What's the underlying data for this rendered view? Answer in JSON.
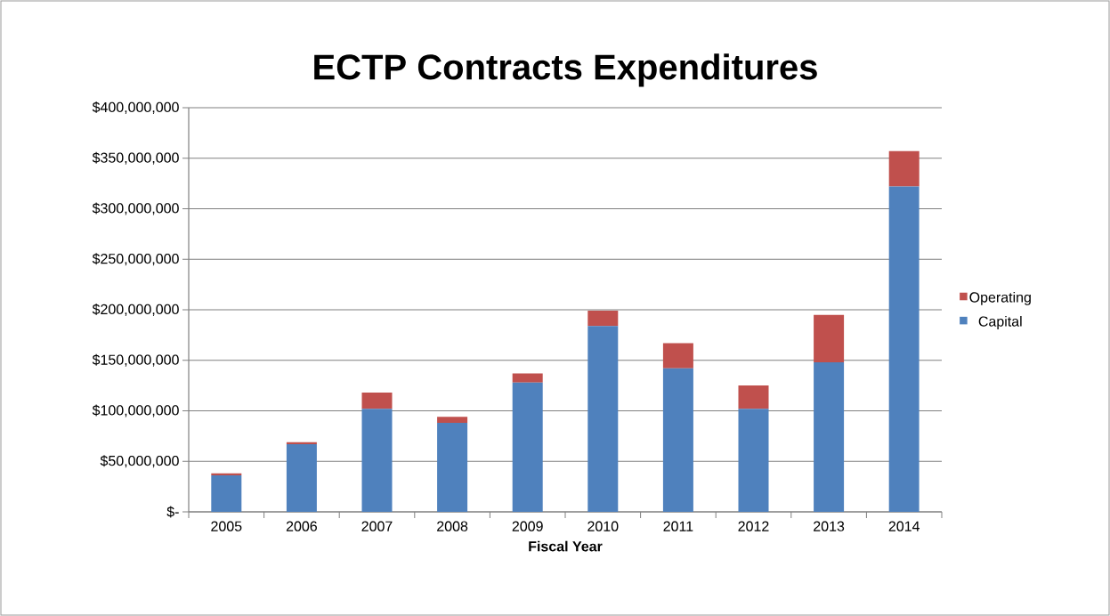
{
  "chart_data": {
    "type": "bar",
    "title": "ECTP Contracts Expenditures",
    "xlabel": "Fiscal Year",
    "categories": [
      "2005",
      "2006",
      "2007",
      "2008",
      "2009",
      "2010",
      "2011",
      "2012",
      "2013",
      "2014"
    ],
    "series": [
      {
        "name": "Capital",
        "color": "#4f81bd",
        "values": [
          36000000,
          67000000,
          102000000,
          88000000,
          128000000,
          184000000,
          142000000,
          102000000,
          148000000,
          322000000
        ]
      },
      {
        "name": "Operating",
        "color": "#c0504d",
        "values": [
          2000000,
          2000000,
          16000000,
          6000000,
          9000000,
          15000000,
          25000000,
          23000000,
          47000000,
          35000000
        ]
      }
    ],
    "stacked": true,
    "ylim": [
      0,
      400000000
    ],
    "yticks": [
      {
        "value": 0,
        "label": "$-"
      },
      {
        "value": 50000000,
        "label": "$50,000,000"
      },
      {
        "value": 100000000,
        "label": "$100,000,000"
      },
      {
        "value": 150000000,
        "label": "$150,000,000"
      },
      {
        "value": 200000000,
        "label": "$200,000,000"
      },
      {
        "value": 250000000,
        "label": "$250,000,000"
      },
      {
        "value": 300000000,
        "label": "$300,000,000"
      },
      {
        "value": 350000000,
        "label": "$350,000,000"
      },
      {
        "value": 400000000,
        "label": "$400,000,000"
      }
    ],
    "grid": "y",
    "legend": "right"
  }
}
